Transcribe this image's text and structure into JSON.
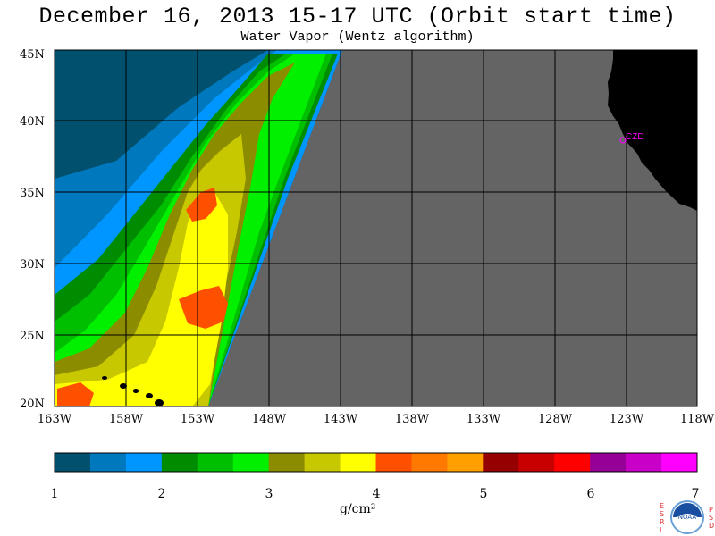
{
  "title": "December 16, 2013  15-17 UTC  (Orbit start time)",
  "subtitle": "Water Vapor (Wentz algorithm)",
  "map": {
    "lat_labels": [
      "45N",
      "40N",
      "35N",
      "30N",
      "25N",
      "20N"
    ],
    "lon_labels": [
      "163W",
      "158W",
      "153W",
      "148W",
      "143W",
      "138W",
      "133W",
      "128W",
      "123W",
      "118W"
    ],
    "station_label": "CZD",
    "colors": {
      "no_data": "#646464",
      "land": "#000000",
      "station": "#ff00ff"
    }
  },
  "colorbar": {
    "tick_labels": [
      "1",
      "2",
      "3",
      "4",
      "5",
      "6",
      "7"
    ],
    "unit": "g/cm²",
    "colors": [
      "#00506e",
      "#0078be",
      "#0096ff",
      "#008c00",
      "#00be00",
      "#00f000",
      "#8c8c00",
      "#c8c800",
      "#ffff00",
      "#ff5000",
      "#ff7800",
      "#ffa000",
      "#960000",
      "#c80000",
      "#ff0000",
      "#960096",
      "#c800c8",
      "#ff00ff"
    ]
  },
  "logo": {
    "left_letters": [
      "E",
      "S",
      "R",
      "L"
    ],
    "right_letters": [
      "P",
      "S",
      "D"
    ],
    "name": "NOAA"
  }
}
